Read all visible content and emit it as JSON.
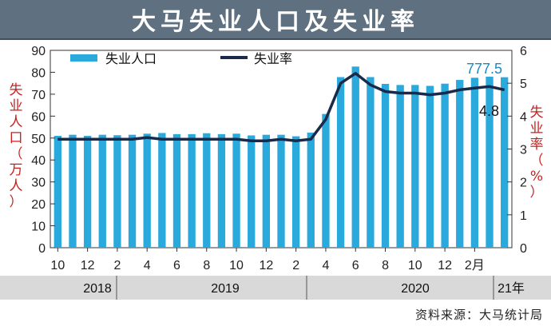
{
  "title": "大马失业人口及失业率",
  "source": "资料来源：大马统计局",
  "colors": {
    "bar": "#29a9dc",
    "line": "#1c2a4a",
    "header": "#5f7180",
    "axis_title": "#c8201e",
    "year_band": "#d9d9d9"
  },
  "chart_data": {
    "type": "bar+line",
    "x_tick_labels": [
      "10",
      "12",
      "2",
      "4",
      "6",
      "8",
      "10",
      "12",
      "2",
      "4",
      "6",
      "8",
      "10",
      "12",
      "2月"
    ],
    "year_labels": [
      "2018",
      "2019",
      "2020",
      "21年"
    ],
    "series": [
      {
        "name": "失业人口",
        "type": "bar",
        "axis": "left",
        "values": [
          51,
          51.5,
          51,
          51.5,
          51.3,
          51.5,
          52,
          52.3,
          51.8,
          51.8,
          52.2,
          51.8,
          52,
          51.2,
          51.5,
          51.5,
          50.8,
          52.5,
          61,
          77.8,
          82.6,
          77.8,
          74.7,
          74.2,
          74.2,
          73.8,
          74.8,
          76.5,
          77.5,
          78,
          77.75
        ]
      },
      {
        "name": "失业率",
        "type": "line",
        "axis": "right",
        "values": [
          3.3,
          3.3,
          3.3,
          3.3,
          3.3,
          3.3,
          3.35,
          3.3,
          3.3,
          3.3,
          3.3,
          3.3,
          3.3,
          3.25,
          3.25,
          3.3,
          3.25,
          3.3,
          3.9,
          5.0,
          5.3,
          4.95,
          4.75,
          4.7,
          4.7,
          4.65,
          4.7,
          4.8,
          4.85,
          4.9,
          4.8
        ]
      }
    ],
    "y_left": {
      "label": "失业人口（万人）",
      "min": 0,
      "max": 90,
      "ticks": [
        "0",
        "10",
        "20",
        "30",
        "40",
        "50",
        "60",
        "70",
        "80",
        "90"
      ]
    },
    "y_right": {
      "label": "失业率（%）",
      "min": 0,
      "max": 6,
      "ticks": [
        "0",
        "1",
        "2",
        "3",
        "4",
        "5",
        "6"
      ]
    },
    "annotations": [
      "777.5",
      "4.8"
    ],
    "legend": "top-left",
    "grid": false
  }
}
